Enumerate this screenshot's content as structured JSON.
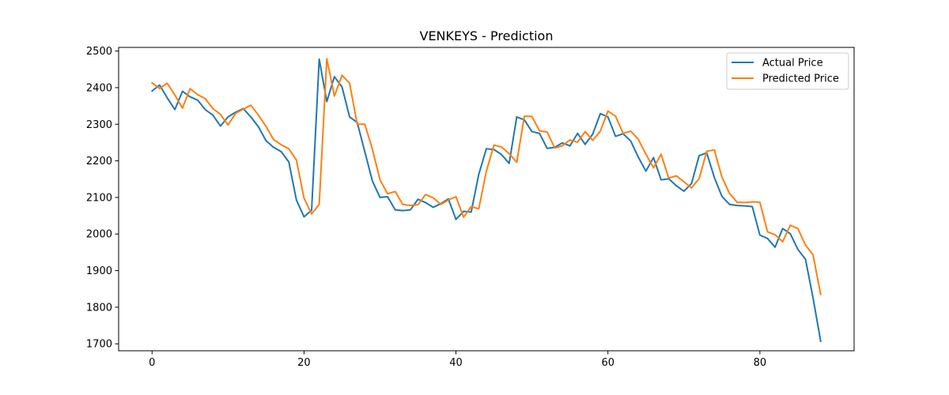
{
  "chart_data": {
    "type": "line",
    "title": "VENKEYS - Prediction",
    "xlabel": "",
    "ylabel": "",
    "xlim": [
      -4.4,
      92.4
    ],
    "ylim": [
      1681,
      2510
    ],
    "xticks": [
      0,
      20,
      40,
      60,
      80
    ],
    "yticks": [
      1700,
      1800,
      1900,
      2000,
      2100,
      2200,
      2300,
      2400,
      2500
    ],
    "grid": false,
    "legend_position": "upper right",
    "series": [
      {
        "name": "Actual Price",
        "color": "#1f77b4",
        "x": [
          0,
          1,
          2,
          3,
          4,
          5,
          6,
          7,
          8,
          9,
          10,
          11,
          12,
          13,
          14,
          15,
          16,
          17,
          18,
          19,
          20,
          21,
          22,
          23,
          24,
          25,
          26,
          27,
          28,
          29,
          30,
          31,
          32,
          33,
          34,
          35,
          36,
          37,
          38,
          39,
          40,
          41,
          42,
          43,
          44,
          45,
          46,
          47,
          48,
          49,
          50,
          51,
          52,
          53,
          54,
          55,
          56,
          57,
          58,
          59,
          60,
          61,
          62,
          63,
          64,
          65,
          66,
          67,
          68,
          69,
          70,
          71,
          72,
          73,
          74,
          75,
          76,
          77,
          78,
          79,
          80,
          81,
          82,
          83,
          84,
          85,
          86,
          87,
          88
        ],
        "values": [
          2391,
          2407,
          2372,
          2340,
          2390,
          2375,
          2366,
          2340,
          2325,
          2295,
          2320,
          2333,
          2343,
          2320,
          2293,
          2255,
          2237,
          2225,
          2197,
          2093,
          2047,
          2065,
          2478,
          2362,
          2430,
          2402,
          2320,
          2305,
          2225,
          2145,
          2100,
          2102,
          2066,
          2064,
          2066,
          2095,
          2086,
          2073,
          2083,
          2096,
          2040,
          2062,
          2060,
          2163,
          2233,
          2231,
          2217,
          2193,
          2320,
          2312,
          2280,
          2275,
          2234,
          2237,
          2249,
          2241,
          2275,
          2245,
          2273,
          2329,
          2320,
          2267,
          2274,
          2254,
          2210,
          2172,
          2209,
          2148,
          2151,
          2132,
          2117,
          2138,
          2214,
          2222,
          2155,
          2103,
          2081,
          2078,
          2077,
          2075,
          1997,
          1988,
          1964,
          2015,
          2001,
          1958,
          1931,
          1825,
          1707
        ]
      },
      {
        "name": "Predicted Price",
        "color": "#ff7f0e",
        "x": [
          0,
          1,
          2,
          3,
          4,
          5,
          6,
          7,
          8,
          9,
          10,
          11,
          12,
          13,
          14,
          15,
          16,
          17,
          18,
          19,
          20,
          21,
          22,
          23,
          24,
          25,
          26,
          27,
          28,
          29,
          30,
          31,
          32,
          33,
          34,
          35,
          36,
          37,
          38,
          39,
          40,
          41,
          42,
          43,
          44,
          45,
          46,
          47,
          48,
          49,
          50,
          51,
          52,
          53,
          54,
          55,
          56,
          57,
          58,
          59,
          60,
          61,
          62,
          63,
          64,
          65,
          66,
          67,
          68,
          69,
          70,
          71,
          72,
          73,
          74,
          75,
          76,
          77,
          78,
          79,
          80,
          81,
          82,
          83,
          84,
          85,
          86,
          87,
          88
        ],
        "values": [
          2413,
          2398,
          2412,
          2380,
          2344,
          2397,
          2381,
          2370,
          2343,
          2327,
          2298,
          2330,
          2341,
          2352,
          2325,
          2294,
          2258,
          2244,
          2233,
          2202,
          2098,
          2055,
          2081,
          2479,
          2377,
          2434,
          2412,
          2300,
          2300,
          2232,
          2148,
          2110,
          2116,
          2081,
          2078,
          2080,
          2108,
          2099,
          2081,
          2093,
          2102,
          2046,
          2075,
          2069,
          2172,
          2243,
          2238,
          2220,
          2196,
          2322,
          2321,
          2282,
          2279,
          2235,
          2241,
          2257,
          2251,
          2280,
          2256,
          2281,
          2336,
          2322,
          2275,
          2281,
          2259,
          2218,
          2181,
          2218,
          2153,
          2159,
          2143,
          2126,
          2151,
          2226,
          2230,
          2156,
          2111,
          2087,
          2086,
          2088,
          2087,
          2006,
          1998,
          1979,
          2024,
          2015,
          1970,
          1943,
          1835
        ]
      }
    ]
  }
}
